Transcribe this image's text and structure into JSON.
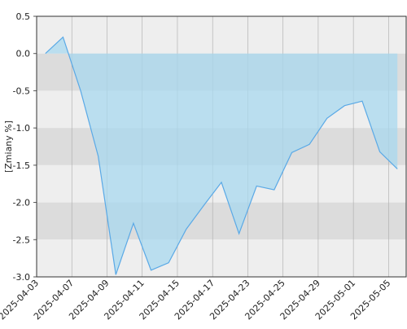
{
  "chart_data": {
    "type": "area",
    "y_label": "[Zmiany %]",
    "categories": [
      "2025-04-03",
      null,
      "2025-04-07",
      null,
      "2025-04-09",
      null,
      "2025-04-11",
      null,
      "2025-04-15",
      null,
      "2025-04-17",
      null,
      "2025-04-23",
      null,
      "2025-04-25",
      null,
      "2025-04-29",
      null,
      "2025-05-01",
      null,
      "2025-05-05"
    ],
    "values": [
      0.0,
      0.22,
      -0.5,
      -1.38,
      -2.97,
      -2.28,
      -2.91,
      -2.81,
      -2.36,
      -2.04,
      -1.73,
      -2.42,
      -1.78,
      -1.83,
      -1.33,
      -1.22,
      -0.87,
      -0.7,
      -0.64,
      -1.32,
      -1.55
    ],
    "color": "#5aa9e6",
    "fill": "#a8d8ef",
    "ylim": [
      -3.0,
      0.5
    ],
    "yticks": [
      0.5,
      {
        "value": 0,
        "label": "0.0"
      },
      -0.5,
      {
        "value": -1,
        "label": "-1.0"
      },
      -1.5,
      {
        "value": -2,
        "label": "-2.0"
      },
      -2.5,
      {
        "value": -3,
        "label": "-3.0"
      }
    ],
    "grid": true
  }
}
